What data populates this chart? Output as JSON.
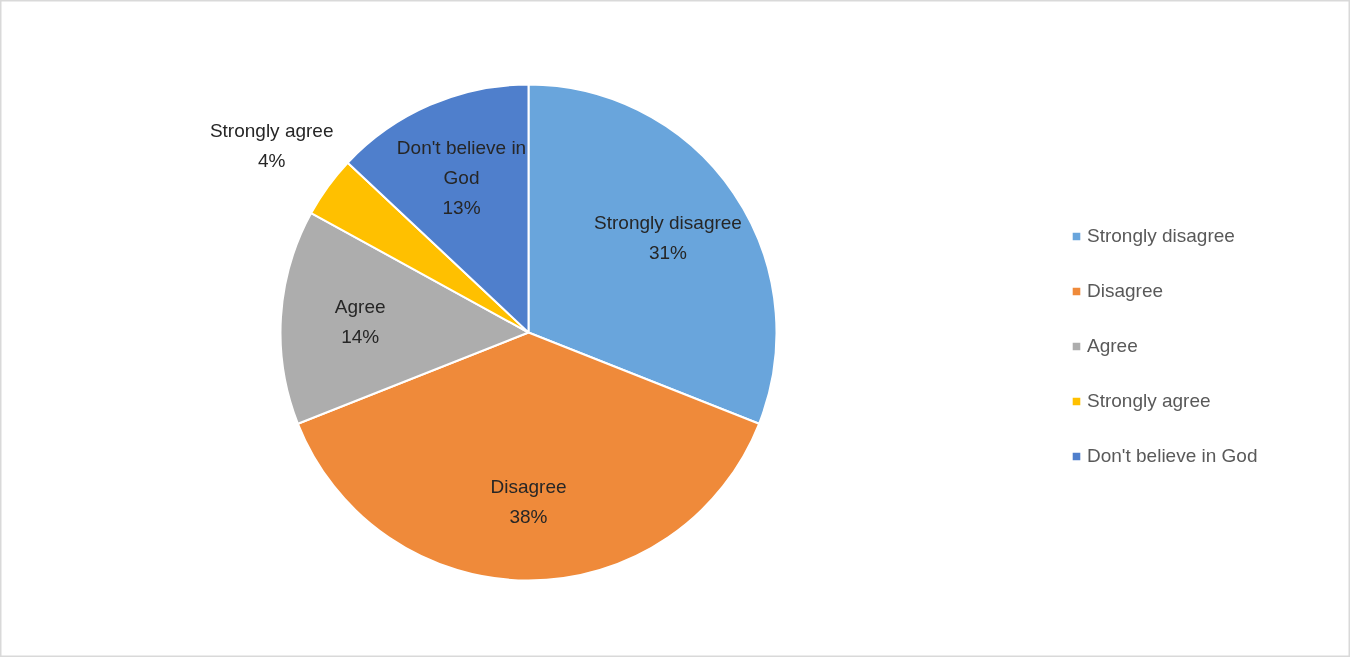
{
  "chart_data": {
    "type": "pie",
    "categories": [
      "Strongly disagree",
      "Disagree",
      "Agree",
      "Strongly agree",
      "Don't believe in God"
    ],
    "values": [
      31,
      38,
      14,
      4,
      13
    ],
    "colors": [
      "#69a5dc",
      "#ef8a3a",
      "#adadad",
      "#ffc000",
      "#4f7fcc"
    ],
    "data_labels": true,
    "value_labels": [
      "31%",
      "38%",
      "14%",
      "4%",
      "13%"
    ],
    "legend": "right"
  }
}
